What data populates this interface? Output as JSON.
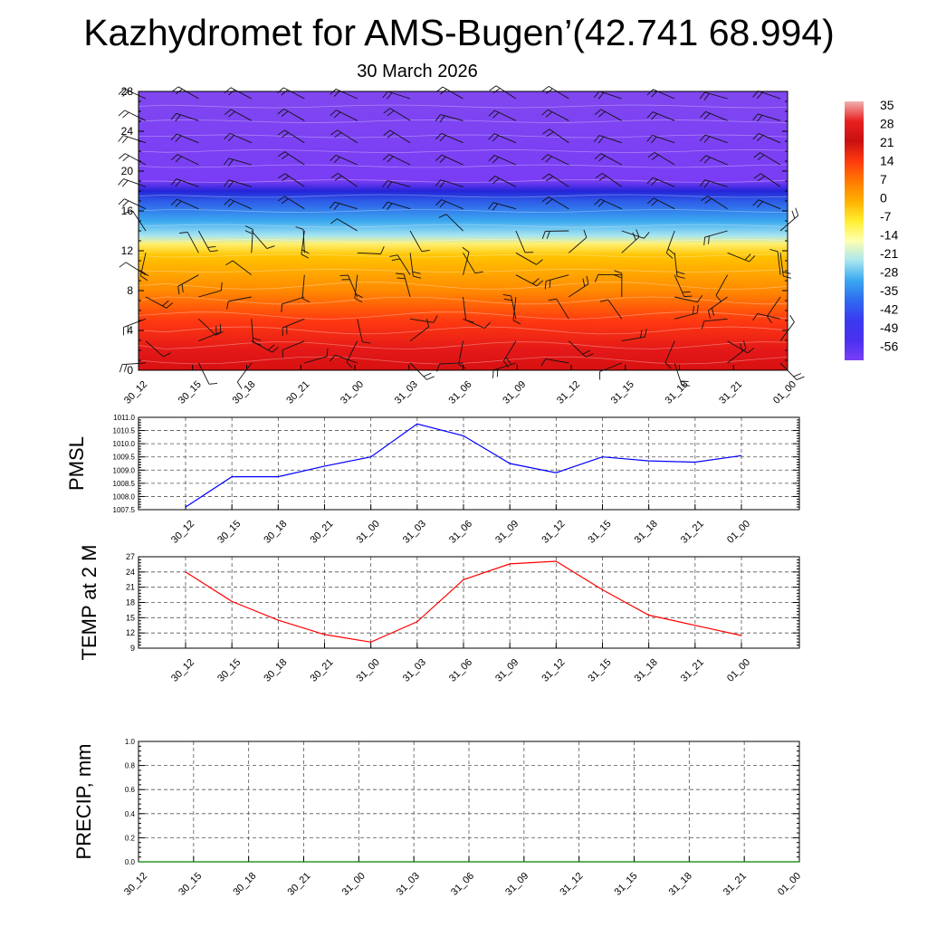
{
  "title": "Kazhydromet for AMS-Bugen’(42.741 68.994)",
  "subtitle": "30 March 2026",
  "chart_data": [
    {
      "type": "heatmap",
      "name": "vertical-cross-section",
      "x_tick_labels": [
        "30_12",
        "30_15",
        "30_18",
        "30_21",
        "31_00",
        "31_03",
        "31_06",
        "31_09",
        "31_12",
        "31_15",
        "31_18",
        "31_21",
        "01_00"
      ],
      "y_ticks": [
        0,
        4,
        8,
        12,
        16,
        20,
        24,
        28
      ],
      "ylim": [
        0,
        28
      ],
      "colorbar_labels": [
        "35",
        "28",
        "21",
        "14",
        "7",
        "0",
        "-7",
        "-14",
        "-21",
        "-28",
        "-35",
        "-42",
        "-49",
        "-56"
      ],
      "colormap_stops": [
        "#7a3df5",
        "#6a40f0",
        "#3a3af0",
        "#2f6af0",
        "#3aa8f0",
        "#7fd6f0",
        "#ffffb0",
        "#ffee30",
        "#ffb000",
        "#ff7a00",
        "#ff3a10",
        "#e81010",
        "#c81010"
      ],
      "field_bands": [
        {
          "level": 28,
          "color": "#8047f0"
        },
        {
          "level": 19,
          "color": "#7a3df5"
        },
        {
          "level": 18,
          "color": "#2424d8"
        },
        {
          "level": 17,
          "color": "#2d5ae8"
        },
        {
          "level": 15,
          "color": "#3aa8f0"
        },
        {
          "level": 13.5,
          "color": "#a8e6f0"
        },
        {
          "level": 12.7,
          "color": "#fff070"
        },
        {
          "level": 11.5,
          "color": "#ffc400"
        },
        {
          "level": 8,
          "color": "#ff8a00"
        },
        {
          "level": 5,
          "color": "#ff3a10"
        },
        {
          "level": 2,
          "color": "#e41818"
        }
      ],
      "wind_barb_columns": 13,
      "wind_barb_rows": 13
    },
    {
      "type": "line",
      "name": "pmsl",
      "ylabel": "PMSL",
      "x": [
        "30_12",
        "30_15",
        "30_18",
        "30_21",
        "31_00",
        "31_03",
        "31_06",
        "31_09",
        "31_12",
        "31_15",
        "31_18",
        "31_21",
        "01_00"
      ],
      "values": [
        1007.6,
        1008.75,
        1008.75,
        1009.15,
        1009.5,
        1010.75,
        1010.3,
        1009.25,
        1008.9,
        1009.5,
        1009.35,
        1009.3,
        1009.55
      ],
      "ylim": [
        1007.5,
        1011.0
      ],
      "y_tick_labels": [
        "1011.0",
        "1010.5",
        "1010.0",
        "1009.5",
        "1009.0",
        "1008.5",
        "1008.0",
        "1007.5"
      ],
      "line_color": "#0000ff"
    },
    {
      "type": "line",
      "name": "temp-2m",
      "ylabel": "TEMP at 2 M",
      "x": [
        "30_12",
        "30_15",
        "30_18",
        "30_21",
        "31_00",
        "31_03",
        "31_06",
        "31_09",
        "31_12",
        "31_15",
        "31_18",
        "31_21",
        "01_00"
      ],
      "values": [
        24.0,
        18.2,
        14.5,
        11.7,
        10.2,
        14.2,
        22.5,
        25.6,
        26.1,
        20.5,
        15.5,
        13.5,
        11.5
      ],
      "ylim": [
        9,
        27
      ],
      "y_tick_labels": [
        "27",
        "24",
        "21",
        "18",
        "15",
        "12",
        "9"
      ],
      "line_color": "#ff0000"
    },
    {
      "type": "line",
      "name": "precip",
      "ylabel": "PRECIP, mm",
      "x": [
        "30_12",
        "30_15",
        "30_18",
        "30_21",
        "31_00",
        "31_03",
        "31_06",
        "31_09",
        "31_12",
        "31_15",
        "31_18",
        "31_21",
        "01_00"
      ],
      "values": [
        0,
        0,
        0,
        0,
        0,
        0,
        0,
        0,
        0,
        0,
        0,
        0,
        0
      ],
      "ylim": [
        0,
        1.0
      ],
      "y_tick_labels": [
        "1.0",
        "0.8",
        "0.6",
        "0.4",
        "0.2",
        "0.0"
      ],
      "line_color": "#008000"
    }
  ]
}
